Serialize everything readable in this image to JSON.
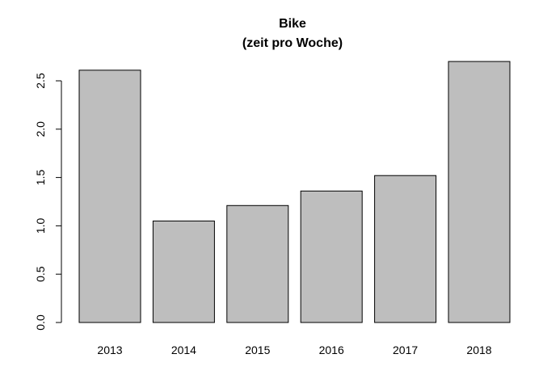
{
  "chart_data": {
    "type": "bar",
    "title": "Bike",
    "subtitle": "(zeit pro Woche)",
    "xlabel": "",
    "ylabel": "",
    "categories": [
      "2013",
      "2014",
      "2015",
      "2016",
      "2017",
      "2018"
    ],
    "values": [
      2.61,
      1.05,
      1.21,
      1.36,
      1.52,
      2.7
    ],
    "ylim": [
      0,
      2.75
    ],
    "yticks": [
      "0.0",
      "0.5",
      "1.0",
      "1.5",
      "2.0",
      "2.5"
    ],
    "grid": false,
    "legend": "none",
    "bar_color": "#bebebe",
    "bar_edge_color": "#000000"
  }
}
